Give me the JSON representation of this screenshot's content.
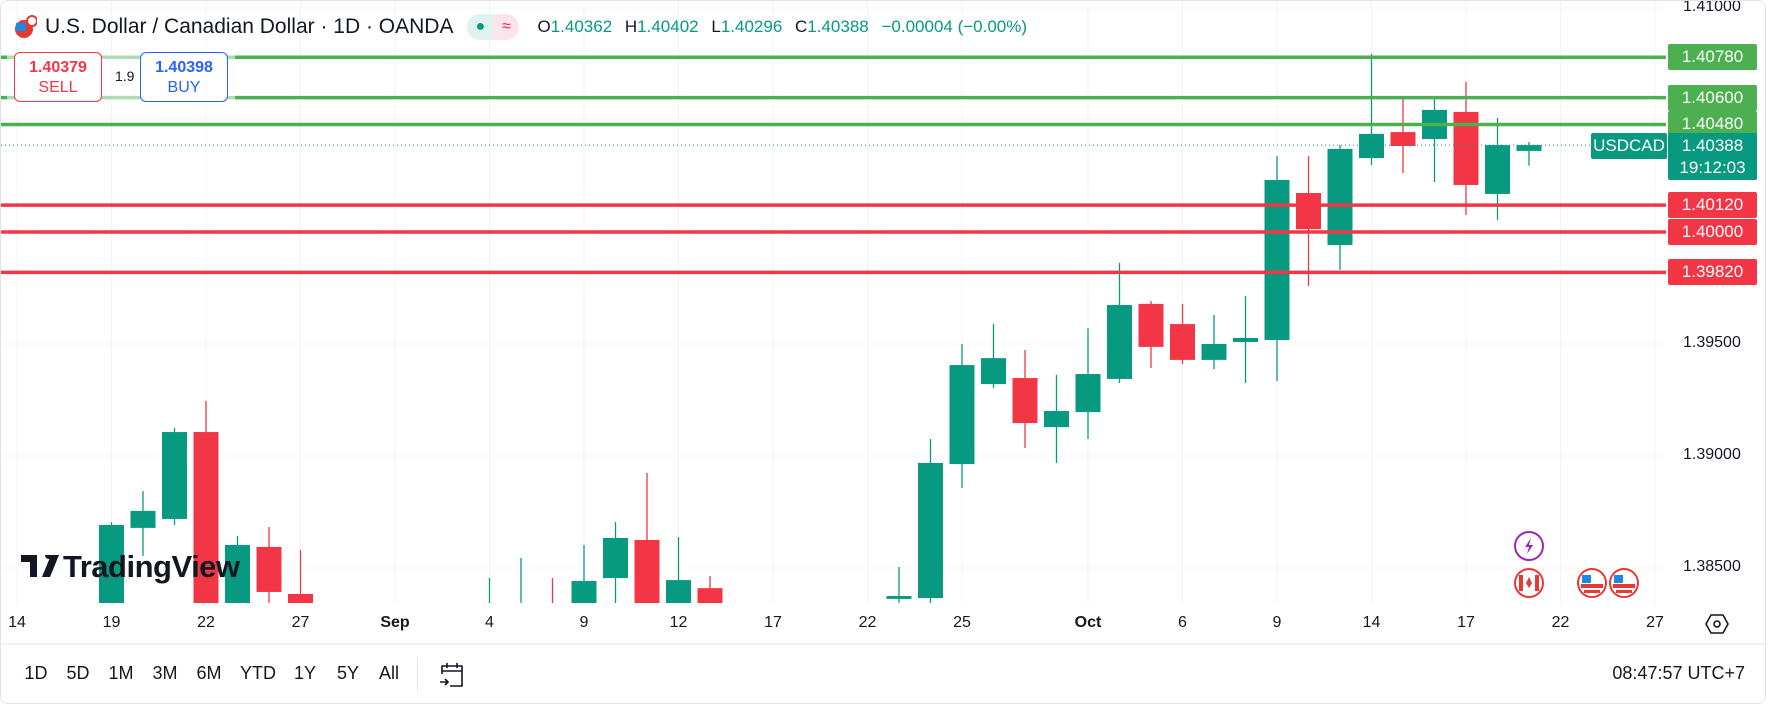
{
  "header": {
    "title": "U.S. Dollar / Canadian Dollar · 1D · OANDA",
    "o_label": "O",
    "o": "1.40362",
    "h_label": "H",
    "h": "1.40402",
    "l_label": "L",
    "l": "1.40296",
    "c_label": "C",
    "c": "1.40388",
    "change": "−0.00004 (−0.00%)",
    "market_open_icon": "dot",
    "indicator_icon": "≈"
  },
  "trade": {
    "sell_price": "1.40379",
    "sell_label": "SELL",
    "spread": "1.9",
    "buy_price": "1.40398",
    "buy_label": "BUY"
  },
  "symbol_badge": {
    "symbol": "USDCAD",
    "price": "1.40388",
    "countdown": "19:12:03"
  },
  "watermark": "TradingView",
  "toolbar": {
    "ranges": [
      "1D",
      "5D",
      "1M",
      "3M",
      "6M",
      "YTD",
      "1Y",
      "5Y",
      "All"
    ],
    "time": "08:47:57 UTC+7"
  },
  "colors": {
    "up": "#089981",
    "down": "#f23645",
    "support": "#f23645",
    "resistance": "#4caf50"
  },
  "chart_data": {
    "type": "candlestick",
    "title": "U.S. Dollar / Canadian Dollar · 1D · OANDA",
    "ylim": [
      1.3834,
      1.4104
    ],
    "y_ticks": [
      "1.41000",
      "1.39500",
      "1.39000",
      "1.38500"
    ],
    "y_tick_values": [
      1.41,
      1.395,
      1.39,
      1.385
    ],
    "x_ticks": [
      {
        "label": "14",
        "i": 0
      },
      {
        "label": "19",
        "i": 3
      },
      {
        "label": "22",
        "i": 6
      },
      {
        "label": "27",
        "i": 9
      },
      {
        "label": "Sep",
        "i": 12
      },
      {
        "label": "4",
        "i": 15
      },
      {
        "label": "9",
        "i": 18
      },
      {
        "label": "12",
        "i": 21
      },
      {
        "label": "17",
        "i": 24
      },
      {
        "label": "22",
        "i": 27
      },
      {
        "label": "25",
        "i": 30
      },
      {
        "label": "Oct",
        "i": 34
      },
      {
        "label": "6",
        "i": 37
      },
      {
        "label": "9",
        "i": 40
      },
      {
        "label": "14",
        "i": 43
      },
      {
        "label": "17",
        "i": 46
      },
      {
        "label": "22",
        "i": 49
      },
      {
        "label": "27",
        "i": 52
      }
    ],
    "levels": [
      {
        "price": 1.4078,
        "label": "1.40780",
        "kind": "resistance"
      },
      {
        "price": 1.406,
        "label": "1.40600",
        "kind": "resistance"
      },
      {
        "price": 1.4048,
        "label": "1.40480",
        "kind": "resistance"
      },
      {
        "price": 1.4012,
        "label": "1.40120",
        "kind": "support"
      },
      {
        "price": 1.4,
        "label": "1.40000",
        "kind": "support"
      },
      {
        "price": 1.3982,
        "label": "1.39820",
        "kind": "support"
      }
    ],
    "last_price": 1.40388,
    "candles": [
      [
        3,
        1.382,
        1.38705,
        1.3815,
        1.38692
      ],
      [
        4,
        1.38679,
        1.38844,
        1.38554,
        1.38755
      ],
      [
        5,
        1.38719,
        1.39125,
        1.38692,
        1.39107
      ],
      [
        6,
        1.39107,
        1.39246,
        1.3815,
        1.3825
      ],
      [
        7,
        1.383,
        1.38643,
        1.382,
        1.38603
      ],
      [
        8,
        1.38594,
        1.38683,
        1.3825,
        1.38393
      ],
      [
        9,
        1.38384,
        1.3858,
        1.3825,
        1.383
      ],
      [
        15,
        1.3825,
        1.38455,
        1.382,
        1.383
      ],
      [
        16,
        1.3825,
        1.38545,
        1.382,
        1.383
      ],
      [
        17,
        1.383,
        1.38455,
        1.382,
        1.3825
      ],
      [
        18,
        1.3825,
        1.38603,
        1.382,
        1.38442
      ],
      [
        19,
        1.38455,
        1.38705,
        1.383,
        1.38634
      ],
      [
        20,
        1.38625,
        1.38924,
        1.3825,
        1.383
      ],
      [
        21,
        1.383,
        1.38638,
        1.382,
        1.38446
      ],
      [
        22,
        1.3841,
        1.38464,
        1.3825,
        1.383
      ],
      [
        28,
        1.38362,
        1.38505,
        1.383,
        1.38375
      ],
      [
        29,
        1.38366,
        1.39076,
        1.38344,
        1.38969
      ],
      [
        30,
        1.38964,
        1.395,
        1.38857,
        1.39406
      ],
      [
        31,
        1.39321,
        1.39589,
        1.39304,
        1.39437
      ],
      [
        32,
        1.39348,
        1.39473,
        1.39036,
        1.39147
      ],
      [
        33,
        1.39129,
        1.39362,
        1.38969,
        1.39201
      ],
      [
        34,
        1.39196,
        1.39571,
        1.39076,
        1.39366
      ],
      [
        35,
        1.39344,
        1.39862,
        1.39326,
        1.39674
      ],
      [
        36,
        1.39679,
        1.39692,
        1.39393,
        1.39487
      ],
      [
        37,
        1.39589,
        1.39679,
        1.39411,
        1.39429
      ],
      [
        38,
        1.39429,
        1.39629,
        1.39388,
        1.395
      ],
      [
        39,
        1.39509,
        1.39714,
        1.39326,
        1.39527
      ],
      [
        40,
        1.39518,
        1.40339,
        1.39335,
        1.40232
      ],
      [
        41,
        1.40174,
        1.40339,
        1.39759,
        1.40013
      ],
      [
        42,
        1.39942,
        1.40388,
        1.3983,
        1.40371
      ],
      [
        43,
        1.4033,
        1.40795,
        1.40299,
        1.40438
      ],
      [
        44,
        1.40446,
        1.40594,
        1.40263,
        1.40384
      ],
      [
        45,
        1.40415,
        1.40598,
        1.40223,
        1.40545
      ],
      [
        46,
        1.40536,
        1.4067,
        1.40076,
        1.4021
      ],
      [
        47,
        1.4017,
        1.40509,
        1.40054,
        1.40388
      ],
      [
        48,
        1.40362,
        1.40402,
        1.40296,
        1.40388
      ]
    ]
  }
}
